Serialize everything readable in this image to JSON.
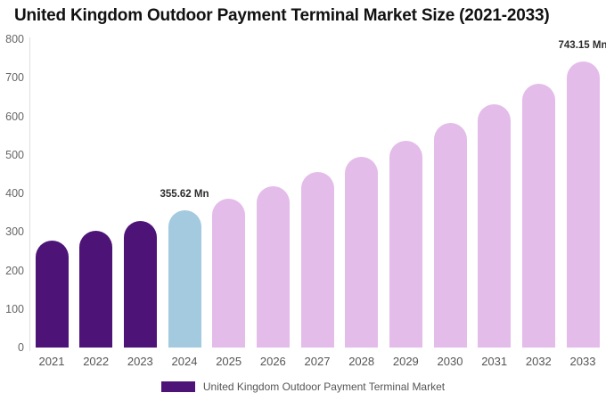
{
  "title": "United Kingdom Outdoor Payment Terminal Market Size (2021-2033)",
  "chart_data": {
    "type": "bar",
    "categories": [
      "2021",
      "2022",
      "2023",
      "2024",
      "2025",
      "2026",
      "2027",
      "2028",
      "2029",
      "2030",
      "2031",
      "2032",
      "2033"
    ],
    "values": [
      278,
      302,
      328,
      355.62,
      386,
      419,
      455,
      494,
      536,
      582,
      631,
      685,
      743.15
    ],
    "bar_periods": [
      "historical",
      "historical",
      "historical",
      "base_year",
      "forecast",
      "forecast",
      "forecast",
      "forecast",
      "forecast",
      "forecast",
      "forecast",
      "forecast",
      "forecast"
    ],
    "title": "United Kingdom Outdoor Payment Terminal Market Size (2021-2033)",
    "xlabel": "",
    "ylabel": "",
    "ylim": [
      0,
      800
    ],
    "yticks": [
      0,
      100,
      200,
      300,
      400,
      500,
      600,
      700,
      800
    ],
    "grid": false,
    "annotations": [
      {
        "category": "2024",
        "text": "355.62 Mn"
      },
      {
        "category": "2033",
        "text": "743.15 Mn"
      }
    ],
    "legend": {
      "position": "bottom",
      "entries": [
        {
          "label": "United Kingdom Outdoor Payment Terminal Market",
          "color": "#4D1377"
        }
      ]
    }
  },
  "colors": {
    "historical": "#4D1377",
    "base_year": "#A3CADF",
    "forecast": "#E4BCEA",
    "axis_line": "#DDDDDD",
    "y_tick_label": "#666666",
    "x_tick_label": "#555555",
    "annotation_text": "#2D2D2D",
    "legend_text": "#555555",
    "title_text": "#111111"
  }
}
